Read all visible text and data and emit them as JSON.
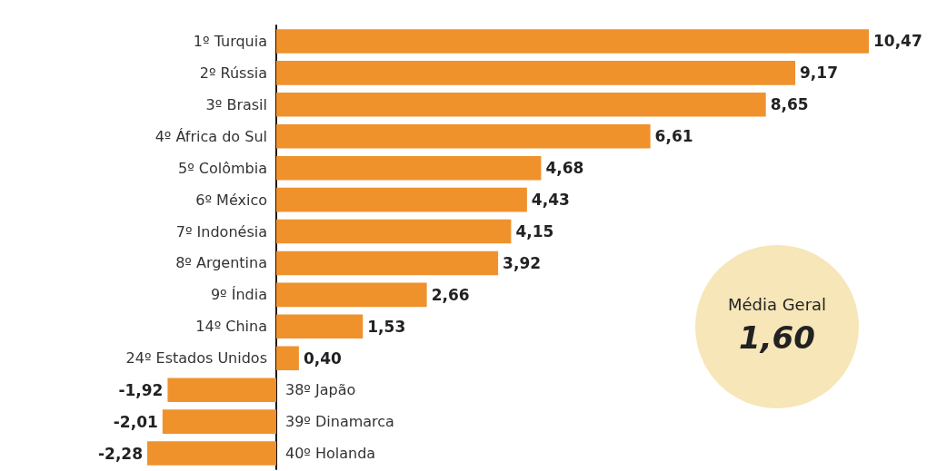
{
  "chart_data": {
    "type": "bar",
    "orientation": "horizontal",
    "categories": [
      "1º Turquia",
      "2º Rússia",
      "3º Brasil",
      "4º África do Sul",
      "5º Colômbia",
      "6º México",
      "7º Indonésia",
      "8º Argentina",
      "9º Índia",
      "14º China",
      "24º Estados Unidos",
      "38º Japão",
      "39º Dinamarca",
      "40º Holanda"
    ],
    "values": [
      10.47,
      9.17,
      8.65,
      6.61,
      4.68,
      4.43,
      4.15,
      3.92,
      2.66,
      1.53,
      0.4,
      -1.92,
      -2.01,
      -2.28
    ],
    "value_labels": [
      "10,47",
      "9,17",
      "8,65",
      "6,61",
      "4,68",
      "4,43",
      "4,15",
      "3,92",
      "2,66",
      "1,53",
      "0,40",
      "-1,92",
      "-2,01",
      "-2,28"
    ],
    "color": "#ef922c",
    "annotations": [
      "Média Geral",
      "1,60"
    ]
  }
}
